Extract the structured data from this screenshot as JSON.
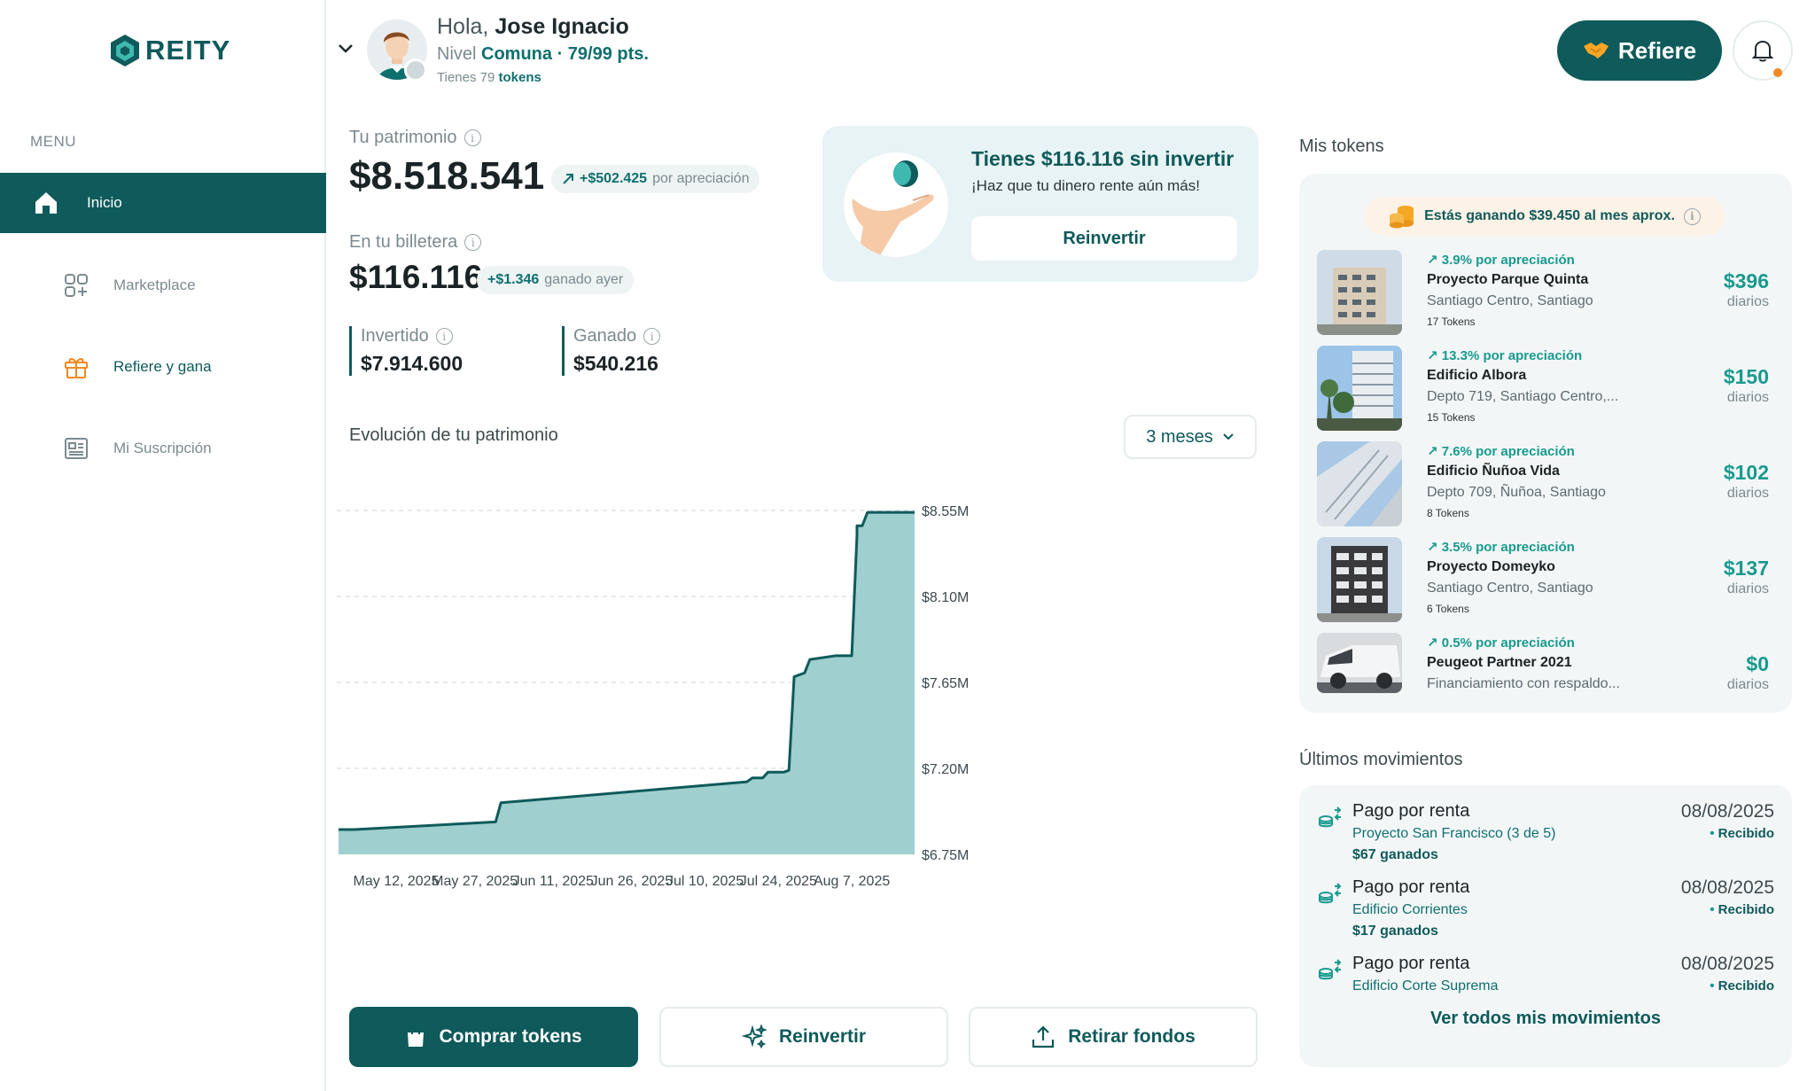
{
  "brand": {
    "name": "REITY",
    "color": "#0f5a5a",
    "accent": "#199a8e"
  },
  "sidebar": {
    "menu_label": "MENU",
    "items": [
      {
        "label": "Inicio",
        "icon": "home-icon",
        "active": true
      },
      {
        "label": "Marketplace",
        "icon": "grid-icon",
        "active": false
      },
      {
        "label": "Refiere y gana",
        "icon": "gift-icon",
        "active": false
      },
      {
        "label": "Mi Suscripción",
        "icon": "newspaper-icon",
        "active": false
      }
    ]
  },
  "header": {
    "greeting": "Hola,",
    "user_name": "Jose Ignacio",
    "level_label": "Nivel",
    "level_name": "Comuna · 79/99 pts.",
    "tokens_prefix": "Tienes 79",
    "tokens_word": "tokens",
    "refer_label": "Refiere"
  },
  "patrimonio": {
    "label": "Tu patrimonio",
    "value": "$8.518.541",
    "appreciation_amount": "+$502.425",
    "appreciation_label": "por apreciación"
  },
  "wallet": {
    "label": "En tu billetera",
    "value": "$116.116",
    "earned_amount": "+$1.346",
    "earned_label": "ganado ayer"
  },
  "stats": {
    "invested_label": "Invertido",
    "invested_value": "$7.914.600",
    "earned_label": "Ganado",
    "earned_value": "$540.216"
  },
  "reinvest_card": {
    "title": "Tienes $116.116 sin invertir",
    "subtitle": "¡Haz que tu dinero rente aún más!",
    "button": "Reinvertir"
  },
  "chart_section": {
    "title": "Evolución de tu patrimonio",
    "range": "3 meses"
  },
  "chart_data": {
    "type": "area",
    "title": "Evolución de tu patrimonio",
    "xlabel": "",
    "ylabel": "",
    "color": "#0f5a5a",
    "fill": "#9fcfcf",
    "ylim": [
      6750000,
      8550000
    ],
    "yticks": [
      6750000,
      7200000,
      7650000,
      8100000,
      8550000
    ],
    "ytick_labels": [
      "$6.75M",
      "$7.20M",
      "$7.65M",
      "$8.10M",
      "$8.55M"
    ],
    "xtick_dates": [
      "2025-05-12",
      "2025-05-27",
      "2025-06-11",
      "2025-06-26",
      "2025-07-10",
      "2025-07-24",
      "2025-08-07"
    ],
    "xtick_labels": [
      "May 12, 2025",
      "May 27, 2025",
      "Jun 11, 2025",
      "Jun 26, 2025",
      "Jul 10, 2025",
      "Jul 24, 2025",
      "Aug 7, 2025"
    ],
    "grid": true,
    "x": [
      "2025-05-01",
      "2025-05-04",
      "2025-05-31",
      "2025-06-01",
      "2025-07-18",
      "2025-07-19",
      "2025-07-21",
      "2025-07-22",
      "2025-07-25",
      "2025-07-26",
      "2025-07-27",
      "2025-07-29",
      "2025-07-30",
      "2025-08-04",
      "2025-08-05",
      "2025-08-07",
      "2025-08-08",
      "2025-08-08",
      "2025-08-09",
      "2025-08-10",
      "2025-08-19"
    ],
    "y": [
      6880000,
      6880000,
      6920000,
      7020000,
      7130000,
      7150000,
      7150000,
      7180000,
      7180000,
      7190000,
      7680000,
      7700000,
      7770000,
      7790000,
      7790000,
      7790000,
      8420000,
      8470000,
      8470000,
      8540000,
      8540000
    ]
  },
  "actions": {
    "buy": "Comprar tokens",
    "reinvest": "Reinvertir",
    "withdraw": "Retirar fondos"
  },
  "tokens_section": {
    "title": "Mis tokens",
    "earning_banner": "Estás ganando $39.450 al mes aprox.",
    "items": [
      {
        "appreciation": "3.9% por apreciación",
        "name": "Proyecto Parque Quinta",
        "location": "Santiago Centro, Santiago",
        "tokens": "17 Tokens",
        "amount": "$396",
        "period": "diarios"
      },
      {
        "appreciation": "13.3% por apreciación",
        "name": "Edificio Albora",
        "location": "Depto 719, Santiago Centro,...",
        "tokens": "15 Tokens",
        "amount": "$150",
        "period": "diarios"
      },
      {
        "appreciation": "7.6% por apreciación",
        "name": "Edificio Ñuñoa Vida",
        "location": "Depto 709, Ñuñoa, Santiago",
        "tokens": "8 Tokens",
        "amount": "$102",
        "period": "diarios"
      },
      {
        "appreciation": "3.5% por apreciación",
        "name": "Proyecto Domeyko",
        "location": "Santiago Centro, Santiago",
        "tokens": "6 Tokens",
        "amount": "$137",
        "period": "diarios"
      },
      {
        "appreciation": "0.5% por apreciación",
        "name": "Peugeot Partner 2021",
        "location": "Financiamiento con respaldo...",
        "tokens": "",
        "amount": "$0",
        "period": "diarios"
      }
    ]
  },
  "movements_section": {
    "title": "Últimos movimientos",
    "items": [
      {
        "title": "Pago por renta",
        "subtitle": "Proyecto San Francisco (3 de 5)",
        "earned": "$67 ganados",
        "date": "08/08/2025",
        "status": "Recibido"
      },
      {
        "title": "Pago por renta",
        "subtitle": "Edificio Corrientes",
        "earned": "$17 ganados",
        "date": "08/08/2025",
        "status": "Recibido"
      },
      {
        "title": "Pago por renta",
        "subtitle": "Edificio Corte Suprema",
        "earned": "",
        "date": "08/08/2025",
        "status": "Recibido"
      }
    ],
    "see_all": "Ver todos mis movimientos"
  }
}
